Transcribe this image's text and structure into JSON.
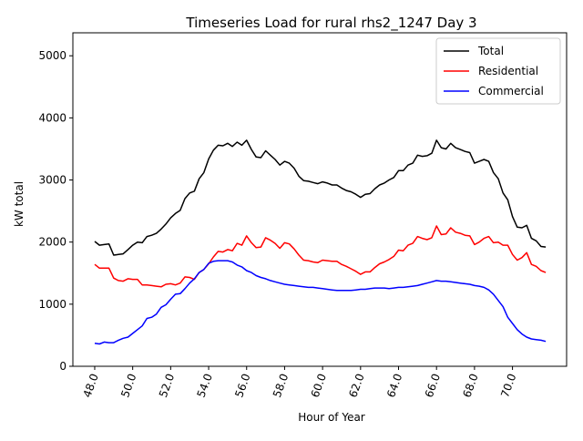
{
  "chart_data": {
    "type": "line",
    "title": "Timeseries Load for rural rhs2_1247  Day 3",
    "xlabel": "Hour of Year",
    "ylabel": "kW total",
    "xlim": [
      46.85,
      72.85
    ],
    "ylim": [
      0,
      5370
    ],
    "x_ticks": [
      48,
      50,
      52,
      54,
      56,
      58,
      60,
      62,
      64,
      66,
      68,
      70
    ],
    "x_tick_labels": [
      "48.0",
      "50.0",
      "52.0",
      "54.0",
      "56.0",
      "58.0",
      "60.0",
      "62.0",
      "64.0",
      "66.0",
      "68.0",
      "70.0"
    ],
    "y_ticks": [
      0,
      1000,
      2000,
      3000,
      4000,
      5000
    ],
    "y_tick_labels": [
      "0",
      "1000",
      "2000",
      "3000",
      "4000",
      "5000"
    ],
    "legend_position": "top-right",
    "x": [
      48.0,
      48.25,
      48.5,
      48.75,
      49.0,
      49.25,
      49.5,
      49.75,
      50.0,
      50.25,
      50.5,
      50.75,
      51.0,
      51.25,
      51.5,
      51.75,
      52.0,
      52.25,
      52.5,
      52.75,
      53.0,
      53.25,
      53.5,
      53.75,
      54.0,
      54.25,
      54.5,
      54.75,
      55.0,
      55.25,
      55.5,
      55.75,
      56.0,
      56.25,
      56.5,
      56.75,
      57.0,
      57.25,
      57.5,
      57.75,
      58.0,
      58.25,
      58.5,
      58.75,
      59.0,
      59.25,
      59.5,
      59.75,
      60.0,
      60.25,
      60.5,
      60.75,
      61.0,
      61.25,
      61.5,
      61.75,
      62.0,
      62.25,
      62.5,
      62.75,
      63.0,
      63.25,
      63.5,
      63.75,
      64.0,
      64.25,
      64.5,
      64.75,
      65.0,
      65.25,
      65.5,
      65.75,
      66.0,
      66.25,
      66.5,
      66.75,
      67.0,
      67.25,
      67.5,
      67.75,
      68.0,
      68.25,
      68.5,
      68.75,
      69.0,
      69.25,
      69.5,
      69.75,
      70.0,
      70.25,
      70.5,
      70.75,
      71.0,
      71.25,
      71.5,
      71.75
    ],
    "series": [
      {
        "name": "Total",
        "color": "#000000",
        "values": [
          2010,
          1950,
          1960,
          1970,
          1790,
          1800,
          1810,
          1880,
          1950,
          2000,
          1990,
          2090,
          2110,
          2140,
          2210,
          2290,
          2390,
          2460,
          2510,
          2700,
          2790,
          2820,
          3020,
          3120,
          3340,
          3480,
          3560,
          3550,
          3590,
          3540,
          3610,
          3560,
          3640,
          3490,
          3370,
          3360,
          3470,
          3400,
          3330,
          3240,
          3300,
          3270,
          3190,
          3060,
          2990,
          2980,
          2960,
          2940,
          2970,
          2950,
          2920,
          2920,
          2870,
          2830,
          2810,
          2770,
          2720,
          2770,
          2780,
          2860,
          2920,
          2950,
          3000,
          3040,
          3150,
          3150,
          3240,
          3270,
          3400,
          3380,
          3390,
          3430,
          3640,
          3520,
          3500,
          3590,
          3520,
          3490,
          3460,
          3440,
          3270,
          3300,
          3330,
          3300,
          3120,
          3020,
          2790,
          2680,
          2410,
          2240,
          2230,
          2270,
          2060,
          2020,
          1930,
          1920
        ]
      },
      {
        "name": "Residential",
        "color": "#ff0000",
        "values": [
          1640,
          1580,
          1580,
          1580,
          1420,
          1380,
          1370,
          1410,
          1400,
          1400,
          1310,
          1310,
          1300,
          1290,
          1280,
          1320,
          1330,
          1310,
          1340,
          1440,
          1430,
          1400,
          1510,
          1560,
          1650,
          1760,
          1850,
          1840,
          1880,
          1860,
          1980,
          1950,
          2100,
          1990,
          1910,
          1920,
          2070,
          2030,
          1980,
          1900,
          1990,
          1970,
          1890,
          1790,
          1710,
          1700,
          1680,
          1670,
          1710,
          1700,
          1690,
          1690,
          1640,
          1610,
          1570,
          1530,
          1480,
          1520,
          1520,
          1590,
          1650,
          1680,
          1720,
          1770,
          1870,
          1860,
          1950,
          1980,
          2090,
          2060,
          2040,
          2070,
          2260,
          2120,
          2130,
          2230,
          2160,
          2140,
          2110,
          2100,
          1960,
          2000,
          2060,
          2090,
          1990,
          2000,
          1950,
          1950,
          1800,
          1710,
          1750,
          1830,
          1640,
          1610,
          1540,
          1510
        ]
      },
      {
        "name": "Commercial",
        "color": "#0000ff",
        "values": [
          370,
          360,
          390,
          380,
          380,
          420,
          450,
          470,
          530,
          590,
          650,
          770,
          790,
          840,
          950,
          990,
          1080,
          1160,
          1170,
          1250,
          1340,
          1410,
          1510,
          1560,
          1660,
          1690,
          1700,
          1700,
          1700,
          1680,
          1630,
          1600,
          1540,
          1510,
          1460,
          1430,
          1410,
          1380,
          1360,
          1340,
          1320,
          1310,
          1300,
          1290,
          1280,
          1270,
          1270,
          1260,
          1250,
          1240,
          1230,
          1220,
          1220,
          1220,
          1220,
          1230,
          1240,
          1240,
          1250,
          1260,
          1260,
          1260,
          1250,
          1260,
          1270,
          1270,
          1280,
          1290,
          1300,
          1320,
          1340,
          1360,
          1380,
          1370,
          1370,
          1360,
          1350,
          1340,
          1330,
          1320,
          1300,
          1290,
          1270,
          1230,
          1160,
          1060,
          960,
          790,
          690,
          590,
          520,
          470,
          440,
          430,
          420,
          400
        ]
      }
    ]
  }
}
